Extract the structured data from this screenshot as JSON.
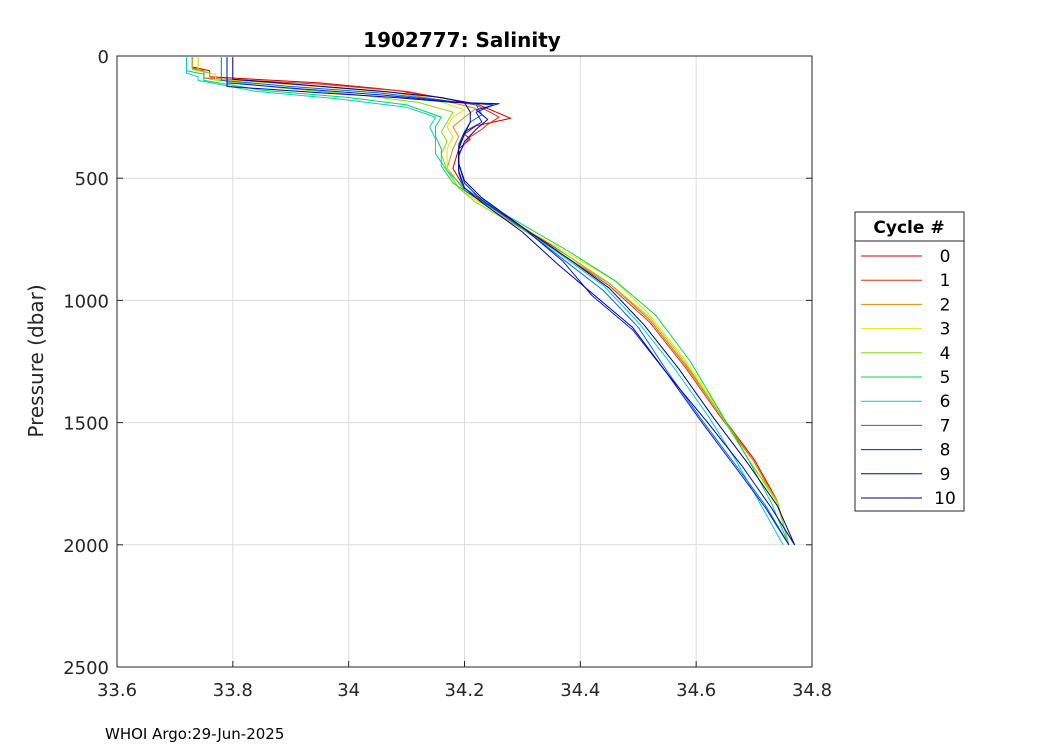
{
  "footer": "WHOI Argo:29-Jun-2025",
  "chart_data": {
    "type": "line",
    "title": "1902777:  Salinity",
    "xlabel": "",
    "ylabel": "Pressure (dbar)",
    "xlim": [
      33.6,
      34.8
    ],
    "ylim": [
      0,
      2500
    ],
    "y_reversed": true,
    "x_ticks": [
      "33.6",
      "33.8",
      "34",
      "34.2",
      "34.4",
      "34.6",
      "34.8"
    ],
    "y_ticks": [
      "0",
      "500",
      "1000",
      "1500",
      "2000",
      "2500"
    ],
    "grid": true,
    "legend_title": "Cycle #",
    "legend_position": "right",
    "series": [
      {
        "name": "0",
        "color": "#d40000",
        "points": [
          [
            33.73,
            5
          ],
          [
            33.73,
            45
          ],
          [
            33.76,
            60
          ],
          [
            33.76,
            85
          ],
          [
            33.95,
            110
          ],
          [
            34.08,
            140
          ],
          [
            34.17,
            175
          ],
          [
            34.22,
            195
          ],
          [
            34.28,
            255
          ],
          [
            34.22,
            285
          ],
          [
            34.2,
            320
          ],
          [
            34.21,
            340
          ],
          [
            34.19,
            380
          ],
          [
            34.18,
            460
          ],
          [
            34.2,
            540
          ],
          [
            34.23,
            590
          ],
          [
            34.3,
            700
          ],
          [
            34.38,
            820
          ],
          [
            34.45,
            930
          ],
          [
            34.52,
            1080
          ],
          [
            34.58,
            1260
          ],
          [
            34.64,
            1460
          ],
          [
            34.7,
            1650
          ],
          [
            34.74,
            1820
          ],
          [
            34.76,
            2000
          ]
        ]
      },
      {
        "name": "1",
        "color": "#e03010",
        "points": [
          [
            33.73,
            5
          ],
          [
            33.73,
            50
          ],
          [
            33.75,
            60
          ],
          [
            33.75,
            90
          ],
          [
            33.95,
            115
          ],
          [
            34.1,
            145
          ],
          [
            34.18,
            180
          ],
          [
            34.22,
            200
          ],
          [
            34.26,
            250
          ],
          [
            34.24,
            280
          ],
          [
            34.23,
            300
          ],
          [
            34.21,
            330
          ],
          [
            34.2,
            360
          ],
          [
            34.19,
            400
          ],
          [
            34.19,
            470
          ],
          [
            34.2,
            540
          ],
          [
            34.24,
            600
          ],
          [
            34.3,
            710
          ],
          [
            34.38,
            830
          ],
          [
            34.45,
            940
          ],
          [
            34.52,
            1090
          ],
          [
            34.58,
            1270
          ],
          [
            34.64,
            1470
          ],
          [
            34.7,
            1660
          ],
          [
            34.74,
            1830
          ],
          [
            34.76,
            2000
          ]
        ]
      },
      {
        "name": "2",
        "color": "#e08a00",
        "points": [
          [
            33.74,
            5
          ],
          [
            33.74,
            55
          ],
          [
            33.76,
            70
          ],
          [
            33.76,
            90
          ],
          [
            33.92,
            120
          ],
          [
            34.08,
            150
          ],
          [
            34.16,
            180
          ],
          [
            34.22,
            215
          ],
          [
            34.2,
            250
          ],
          [
            34.18,
            290
          ],
          [
            34.19,
            330
          ],
          [
            34.18,
            380
          ],
          [
            34.17,
            460
          ],
          [
            34.2,
            550
          ],
          [
            34.23,
            600
          ],
          [
            34.3,
            710
          ],
          [
            34.38,
            830
          ],
          [
            34.45,
            930
          ],
          [
            34.52,
            1080
          ],
          [
            34.58,
            1260
          ],
          [
            34.64,
            1460
          ],
          [
            34.7,
            1660
          ],
          [
            34.74,
            1830
          ],
          [
            34.76,
            2000
          ]
        ]
      },
      {
        "name": "3",
        "color": "#f0e000",
        "points": [
          [
            33.74,
            5
          ],
          [
            33.74,
            60
          ],
          [
            33.77,
            75
          ],
          [
            33.77,
            95
          ],
          [
            33.9,
            125
          ],
          [
            34.05,
            150
          ],
          [
            34.15,
            180
          ],
          [
            34.2,
            220
          ],
          [
            34.18,
            250
          ],
          [
            34.17,
            290
          ],
          [
            34.18,
            330
          ],
          [
            34.17,
            380
          ],
          [
            34.17,
            460
          ],
          [
            34.19,
            540
          ],
          [
            34.22,
            590
          ],
          [
            34.3,
            700
          ],
          [
            34.38,
            810
          ],
          [
            34.46,
            920
          ],
          [
            34.52,
            1060
          ],
          [
            34.58,
            1240
          ],
          [
            34.64,
            1450
          ],
          [
            34.69,
            1650
          ],
          [
            34.74,
            1830
          ],
          [
            34.76,
            2000
          ]
        ]
      },
      {
        "name": "4",
        "color": "#80e000",
        "points": [
          [
            33.73,
            5
          ],
          [
            33.73,
            55
          ],
          [
            33.76,
            70
          ],
          [
            33.76,
            95
          ],
          [
            33.88,
            130
          ],
          [
            34.02,
            160
          ],
          [
            34.12,
            190
          ],
          [
            34.18,
            230
          ],
          [
            34.17,
            270
          ],
          [
            34.16,
            310
          ],
          [
            34.17,
            350
          ],
          [
            34.16,
            400
          ],
          [
            34.17,
            470
          ],
          [
            34.19,
            540
          ],
          [
            34.22,
            600
          ],
          [
            34.3,
            710
          ],
          [
            34.38,
            820
          ],
          [
            34.45,
            930
          ],
          [
            34.52,
            1070
          ],
          [
            34.58,
            1250
          ],
          [
            34.64,
            1460
          ],
          [
            34.69,
            1650
          ],
          [
            34.74,
            1820
          ],
          [
            34.76,
            2000
          ]
        ]
      },
      {
        "name": "5",
        "color": "#00d850",
        "points": [
          [
            33.72,
            5
          ],
          [
            33.72,
            60
          ],
          [
            33.75,
            75
          ],
          [
            33.75,
            100
          ],
          [
            33.85,
            140
          ],
          [
            34.0,
            170
          ],
          [
            34.1,
            200
          ],
          [
            34.16,
            250
          ],
          [
            34.15,
            290
          ],
          [
            34.15,
            330
          ],
          [
            34.16,
            380
          ],
          [
            34.16,
            450
          ],
          [
            34.18,
            520
          ],
          [
            34.22,
            580
          ],
          [
            34.3,
            690
          ],
          [
            34.38,
            800
          ],
          [
            34.46,
            920
          ],
          [
            34.53,
            1060
          ],
          [
            34.59,
            1250
          ],
          [
            34.64,
            1450
          ],
          [
            34.69,
            1650
          ],
          [
            34.73,
            1830
          ],
          [
            34.76,
            2000
          ]
        ]
      },
      {
        "name": "6",
        "color": "#00d0d0",
        "points": [
          [
            33.72,
            5
          ],
          [
            33.72,
            70
          ],
          [
            33.74,
            85
          ],
          [
            33.74,
            100
          ],
          [
            33.84,
            145
          ],
          [
            33.98,
            175
          ],
          [
            34.1,
            210
          ],
          [
            34.15,
            250
          ],
          [
            34.14,
            290
          ],
          [
            34.15,
            340
          ],
          [
            34.15,
            400
          ],
          [
            34.17,
            470
          ],
          [
            34.2,
            540
          ],
          [
            34.24,
            600
          ],
          [
            34.3,
            700
          ],
          [
            34.37,
            820
          ],
          [
            34.44,
            940
          ],
          [
            34.5,
            1090
          ],
          [
            34.56,
            1270
          ],
          [
            34.62,
            1470
          ],
          [
            34.67,
            1660
          ],
          [
            34.71,
            1830
          ],
          [
            34.75,
            2000
          ]
        ]
      },
      {
        "name": "7",
        "color": "#0070e0",
        "points": [
          [
            33.78,
            5
          ],
          [
            33.78,
            100
          ],
          [
            33.9,
            125
          ],
          [
            34.05,
            150
          ],
          [
            34.16,
            180
          ],
          [
            34.22,
            200
          ],
          [
            34.23,
            240
          ],
          [
            34.21,
            270
          ],
          [
            34.2,
            310
          ],
          [
            34.19,
            360
          ],
          [
            34.19,
            420
          ],
          [
            34.19,
            480
          ],
          [
            34.2,
            550
          ],
          [
            34.24,
            610
          ],
          [
            34.31,
            720
          ],
          [
            34.38,
            850
          ],
          [
            34.44,
            960
          ],
          [
            34.5,
            1110
          ],
          [
            34.55,
            1290
          ],
          [
            34.61,
            1490
          ],
          [
            34.67,
            1680
          ],
          [
            34.72,
            1840
          ],
          [
            34.76,
            2000
          ]
        ]
      },
      {
        "name": "8",
        "color": "#0020d0",
        "points": [
          [
            33.79,
            5
          ],
          [
            33.79,
            110
          ],
          [
            33.92,
            135
          ],
          [
            34.06,
            160
          ],
          [
            34.17,
            185
          ],
          [
            34.25,
            200
          ],
          [
            34.22,
            230
          ],
          [
            34.23,
            270
          ],
          [
            34.2,
            310
          ],
          [
            34.19,
            370
          ],
          [
            34.19,
            440
          ],
          [
            34.2,
            520
          ],
          [
            34.23,
            590
          ],
          [
            34.3,
            700
          ],
          [
            34.37,
            840
          ],
          [
            34.42,
            980
          ],
          [
            34.49,
            1120
          ],
          [
            34.55,
            1300
          ],
          [
            34.61,
            1500
          ],
          [
            34.67,
            1690
          ],
          [
            34.72,
            1850
          ],
          [
            34.76,
            2000
          ]
        ]
      },
      {
        "name": "9",
        "color": "#0000b0",
        "points": [
          [
            33.79,
            5
          ],
          [
            33.79,
            125
          ],
          [
            33.95,
            150
          ],
          [
            34.08,
            170
          ],
          [
            34.18,
            190
          ],
          [
            34.26,
            195
          ],
          [
            34.22,
            220
          ],
          [
            34.24,
            260
          ],
          [
            34.22,
            300
          ],
          [
            34.2,
            350
          ],
          [
            34.19,
            410
          ],
          [
            34.19,
            470
          ],
          [
            34.2,
            540
          ],
          [
            34.23,
            600
          ],
          [
            34.3,
            720
          ],
          [
            34.36,
            850
          ],
          [
            34.42,
            970
          ],
          [
            34.49,
            1110
          ],
          [
            34.55,
            1300
          ],
          [
            34.62,
            1500
          ],
          [
            34.68,
            1680
          ],
          [
            34.73,
            1850
          ],
          [
            34.77,
            2000
          ]
        ]
      },
      {
        "name": "10",
        "color": "#000080",
        "points": [
          [
            33.8,
            5
          ],
          [
            33.8,
            95
          ],
          [
            33.93,
            120
          ],
          [
            34.06,
            145
          ],
          [
            34.16,
            170
          ],
          [
            34.2,
            190
          ],
          [
            34.21,
            230
          ],
          [
            34.21,
            270
          ],
          [
            34.2,
            320
          ],
          [
            34.19,
            380
          ],
          [
            34.19,
            440
          ],
          [
            34.2,
            510
          ],
          [
            34.23,
            580
          ],
          [
            34.3,
            700
          ],
          [
            34.38,
            830
          ],
          [
            34.45,
            950
          ],
          [
            34.51,
            1100
          ],
          [
            34.57,
            1280
          ],
          [
            34.63,
            1480
          ],
          [
            34.69,
            1670
          ],
          [
            34.74,
            1840
          ],
          [
            34.77,
            2000
          ]
        ]
      }
    ]
  }
}
